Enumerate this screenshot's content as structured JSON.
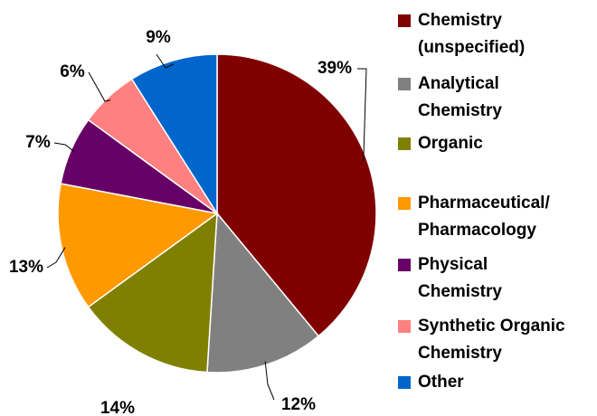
{
  "chart_data": {
    "type": "pie",
    "series": [
      {
        "name": "Chemistry (unspecified)",
        "color": "#800000"
      },
      {
        "name": "Analytical Chemistry",
        "color": "#808080"
      },
      {
        "name": "Organic",
        "color": "#808000"
      },
      {
        "name": "Pharmaceutical/ Pharmacology",
        "color": "#ff9900"
      },
      {
        "name": "Physical Chemistry",
        "color": "#660066"
      },
      {
        "name": "Synthetic Organic Chemistry",
        "color": "#ff8080"
      },
      {
        "name": "Other",
        "color": "#0066cc"
      }
    ],
    "values": [
      39,
      12,
      14,
      13,
      7,
      6,
      9
    ],
    "value_labels": [
      "39%",
      "12%",
      "14%",
      "13%",
      "7%",
      "6%",
      "9%"
    ]
  }
}
